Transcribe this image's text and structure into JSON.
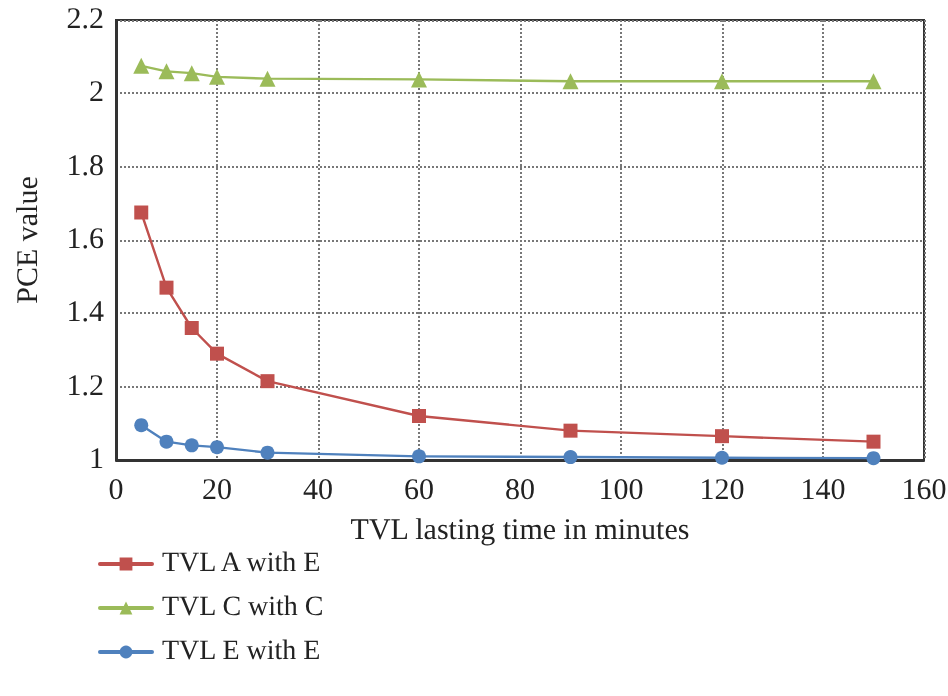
{
  "chart_data": {
    "type": "line",
    "xlabel": "TVL lasting time in minutes",
    "ylabel": "PCE value",
    "x": [
      5,
      10,
      15,
      20,
      30,
      60,
      90,
      120,
      150
    ],
    "series": [
      {
        "name": "TVL A with E",
        "color": "#c0504d",
        "marker": "square",
        "values": [
          1.675,
          1.47,
          1.36,
          1.29,
          1.215,
          1.12,
          1.08,
          1.065,
          1.05
        ]
      },
      {
        "name": "TVL C with C",
        "color": "#9bbb59",
        "marker": "triangle",
        "values": [
          2.075,
          2.06,
          2.055,
          2.045,
          2.04,
          2.038,
          2.033,
          2.033,
          2.033
        ]
      },
      {
        "name": "TVL E with E",
        "color": "#4f81bd",
        "marker": "circle",
        "values": [
          1.095,
          1.05,
          1.04,
          1.035,
          1.02,
          1.01,
          1.008,
          1.006,
          1.005
        ]
      }
    ],
    "xlim": [
      0,
      160
    ],
    "xticks": [
      0,
      20,
      40,
      60,
      80,
      100,
      120,
      140,
      160
    ],
    "ylim": [
      1,
      2.2
    ],
    "yticks": [
      1,
      1.2,
      1.4,
      1.6,
      1.8,
      2,
      2.2
    ],
    "grid": true,
    "legend": "bottom left",
    "line_style": "solid"
  }
}
